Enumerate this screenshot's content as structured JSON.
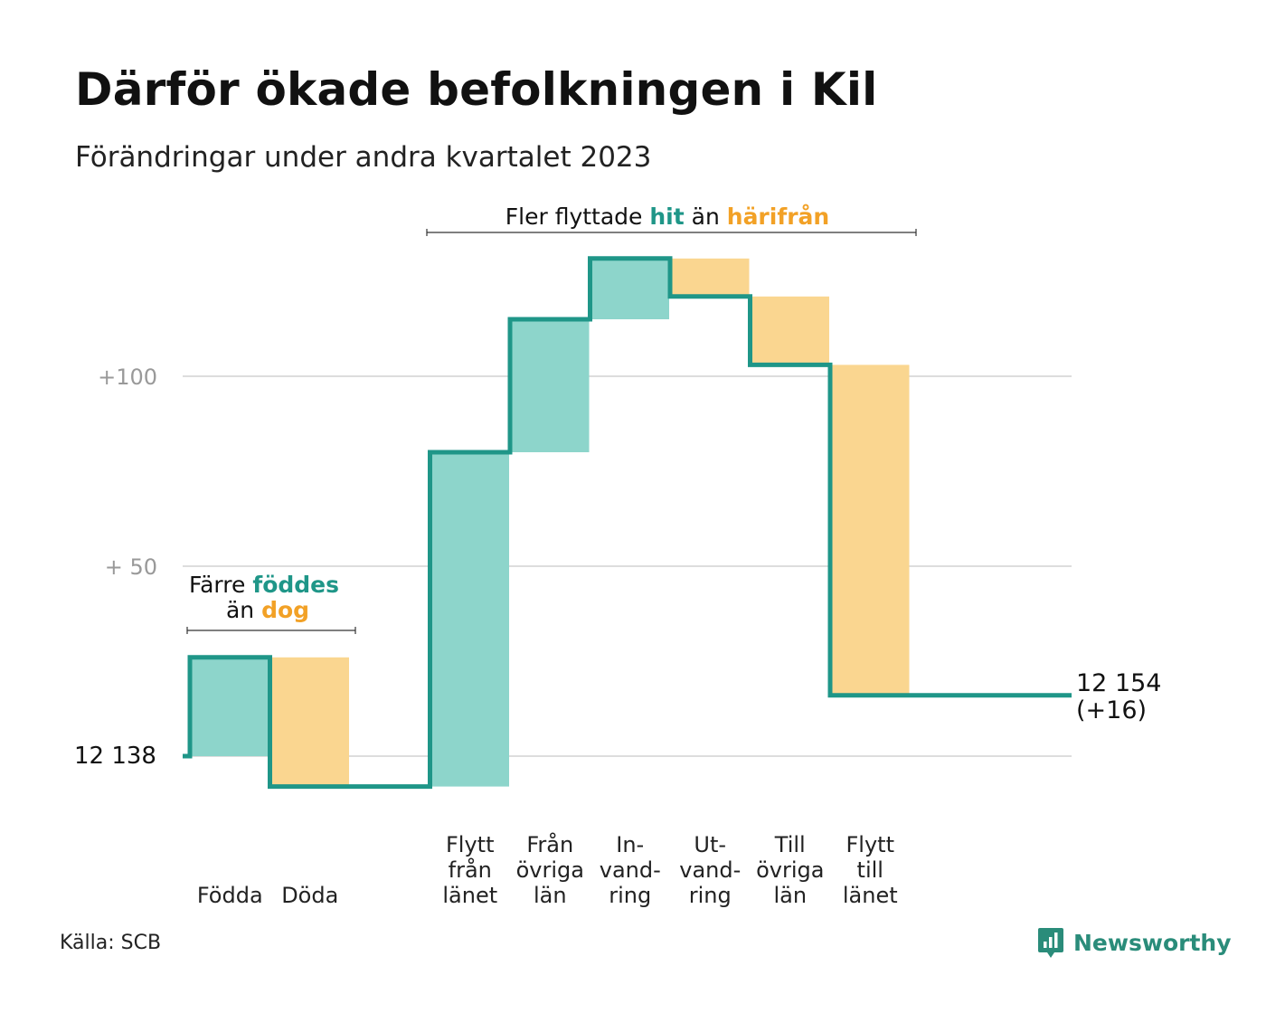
{
  "title": "Därför ökade befolkningen i Kil",
  "subtitle": "Förändringar under andra kvartalet 2023",
  "source": "Källa: SCB",
  "brand": {
    "name": "Newsworthy",
    "icon": "newsworthy-logo-icon"
  },
  "colors": {
    "increase": "#8dd5cb",
    "decrease": "#fad690",
    "line": "#1f9688",
    "text_teal": "#1f9688",
    "text_orange": "#f2a126",
    "grid": "#dddddd",
    "tick_text": "#999999"
  },
  "annotations": {
    "births": {
      "line1_before": "Färre ",
      "line1_highlight": "föddes",
      "line2_before": "än ",
      "line2_highlight": "dog"
    },
    "migration": {
      "before": "Fler flyttade ",
      "highlight1": "hit",
      "middle": " än ",
      "highlight2": "härifrån"
    }
  },
  "chart_data": {
    "type": "waterfall",
    "start_value": 12138,
    "start_label": "12  138",
    "end_label_value": "12 154",
    "end_label_change": "(+16)",
    "y_ticks": [
      {
        "value": 0,
        "label": ""
      },
      {
        "value": 50,
        "label": "+  50"
      },
      {
        "value": 100,
        "label": "+100"
      }
    ],
    "ylim": [
      -8,
      133
    ],
    "steps": [
      {
        "label": [
          "Födda"
        ],
        "change": 26,
        "kind": "increase"
      },
      {
        "label": [
          "Döda"
        ],
        "change": -34,
        "kind": "decrease"
      },
      {
        "label": [],
        "change": 0,
        "kind": "gap"
      },
      {
        "label": [
          "Flytt",
          "från",
          "länet"
        ],
        "change": 88,
        "kind": "increase"
      },
      {
        "label": [
          "Från",
          "övriga",
          "län"
        ],
        "change": 35,
        "kind": "increase"
      },
      {
        "label": [
          "In-",
          "vand-",
          "ring"
        ],
        "change": 16,
        "kind": "increase"
      },
      {
        "label": [
          "Ut-",
          "vand-",
          "ring"
        ],
        "change": -10,
        "kind": "decrease"
      },
      {
        "label": [
          "Till",
          "övriga",
          "län"
        ],
        "change": -18,
        "kind": "decrease"
      },
      {
        "label": [
          "Flytt",
          "till",
          "länet"
        ],
        "change": -87,
        "kind": "decrease"
      }
    ],
    "end_value": 12154,
    "net_change": 16
  }
}
